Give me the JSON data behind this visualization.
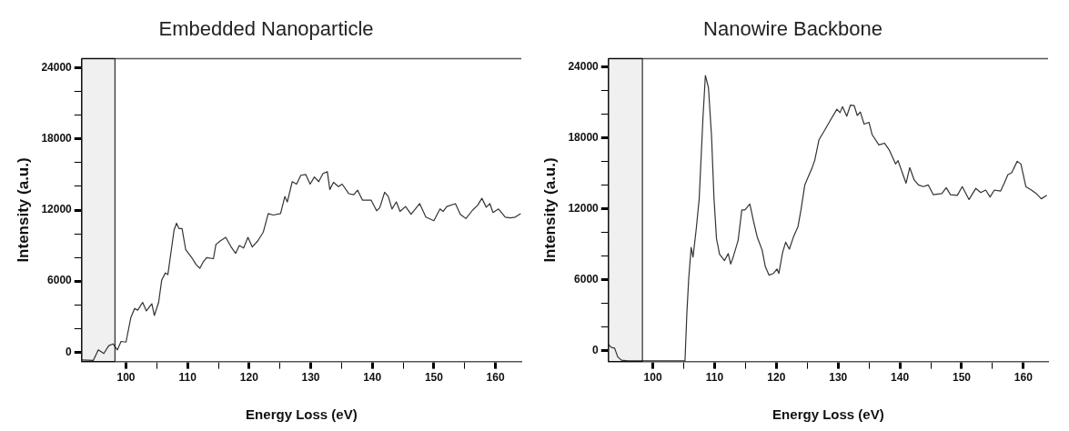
{
  "chart_data": [
    {
      "type": "line",
      "title": "Embedded Nanoparticle",
      "xlabel": "Energy Loss (eV)",
      "ylabel": "Intensity (a.u.)",
      "xlim": [
        92.8,
        164.2
      ],
      "ylim": [
        -800,
        24800
      ],
      "xticks": [
        100,
        {
          "value": 105,
          "label": null
        },
        110,
        {
          "value": 115,
          "label": null
        },
        120,
        {
          "value": 125,
          "label": null
        },
        130,
        {
          "value": 135,
          "label": null
        },
        140,
        {
          "value": 145,
          "label": null
        },
        150,
        {
          "value": 155,
          "label": null
        },
        160
      ],
      "yticks": [
        0,
        {
          "value": 2000,
          "label": null
        },
        {
          "value": 4000,
          "label": null
        },
        6000,
        {
          "value": 8000,
          "label": null
        },
        {
          "value": 10000,
          "label": null
        },
        12000,
        {
          "value": 14000,
          "label": null
        },
        {
          "value": 16000,
          "label": null
        },
        18000,
        {
          "value": 20000,
          "label": null
        },
        {
          "value": 22000,
          "label": null
        },
        24000
      ],
      "grid": false,
      "legend": false,
      "marker": "none",
      "line_style": "solid",
      "bands": [
        {
          "axis": "x",
          "from": 92.8,
          "to": 98.2,
          "color": "#000000"
        }
      ],
      "series": [
        {
          "color": "#333333",
          "x": [
            92.8,
            94.7,
            95.5,
            96.4,
            97.2,
            97.9,
            98.6,
            99.2,
            100,
            100.8,
            101.4,
            101.9,
            102.7,
            103.3,
            104.2,
            104.6,
            105.3,
            105.8,
            106.4,
            106.8,
            107.2,
            107.8,
            108.2,
            108.6,
            109.1,
            109.7,
            110.6,
            111.4,
            112,
            112.5,
            113.1,
            114.2,
            114.6,
            115.3,
            116.2,
            117,
            117.8,
            118.4,
            119.1,
            119.8,
            120.5,
            121.4,
            122.3,
            123.1,
            123.9,
            125.1,
            125.8,
            126.2,
            127,
            127.7,
            128.4,
            129.2,
            129.9,
            130.6,
            131.3,
            132,
            132.7,
            133.1,
            133.7,
            134.5,
            135.1,
            136.2,
            137,
            137.6,
            138.4,
            139.8,
            140.7,
            141.2,
            142,
            142.6,
            143.2,
            143.9,
            144.5,
            145.4,
            146.3,
            147.7,
            148.7,
            150,
            151,
            151.5,
            152.1,
            153.5,
            154.3,
            155.2,
            156.3,
            157.1,
            157.8,
            158.5,
            159.1,
            159.6,
            160.5,
            161.6,
            162.4,
            163.2,
            164.1
          ],
          "values": [
            -660,
            -700,
            180,
            -120,
            540,
            690,
            180,
            900,
            840,
            2940,
            3690,
            3540,
            4200,
            3480,
            4080,
            3090,
            4200,
            6090,
            6690,
            6540,
            8040,
            10290,
            10890,
            10440,
            10440,
            8640,
            8040,
            7380,
            7080,
            7590,
            7980,
            7890,
            9090,
            9390,
            9690,
            8940,
            8340,
            9000,
            8790,
            9690,
            8880,
            9390,
            10140,
            11700,
            11580,
            11700,
            13140,
            12690,
            14400,
            14190,
            14940,
            15000,
            14190,
            14790,
            14400,
            15090,
            15240,
            13740,
            14340,
            13980,
            14190,
            13380,
            13290,
            13680,
            12840,
            12840,
            11940,
            12180,
            13500,
            13140,
            12090,
            12690,
            11880,
            12300,
            11640,
            12540,
            11400,
            11100,
            12090,
            11880,
            12300,
            12540,
            11640,
            11280,
            12000,
            12390,
            12990,
            12240,
            12540,
            11790,
            12090,
            11400,
            11340,
            11400,
            11700
          ]
        }
      ]
    },
    {
      "type": "line",
      "title": "Nanowire Backbone",
      "xlabel": "Energy Loss (eV)",
      "ylabel": "Intensity (a.u.)",
      "xlim": [
        92.8,
        164
      ],
      "ylim": [
        -900,
        24700
      ],
      "xticks": [
        100,
        {
          "value": 105,
          "label": null
        },
        110,
        {
          "value": 115,
          "label": null
        },
        120,
        {
          "value": 125,
          "label": null
        },
        130,
        {
          "value": 135,
          "label": null
        },
        140,
        {
          "value": 145,
          "label": null
        },
        150,
        {
          "value": 155,
          "label": null
        },
        160
      ],
      "yticks": [
        0,
        {
          "value": 2000,
          "label": null
        },
        {
          "value": 4000,
          "label": null
        },
        6000,
        {
          "value": 8000,
          "label": null
        },
        {
          "value": 10000,
          "label": null
        },
        12000,
        {
          "value": 14000,
          "label": null
        },
        {
          "value": 16000,
          "label": null
        },
        18000,
        {
          "value": 20000,
          "label": null
        },
        {
          "value": 22000,
          "label": null
        },
        24000
      ],
      "grid": false,
      "legend": false,
      "marker": "none",
      "line_style": "solid",
      "bands": [
        {
          "axis": "x",
          "from": 92.8,
          "to": 98.3,
          "color": "#000000"
        }
      ],
      "series": [
        {
          "color": "#333333",
          "x": [
            92.8,
            93.3,
            93.8,
            94.3,
            94.9,
            96,
            98.2,
            99.8,
            105.2,
            105.5,
            105.8,
            106.2,
            106.5,
            107,
            107.5,
            108.1,
            108.5,
            109,
            109.5,
            109.9,
            110.3,
            110.8,
            111.6,
            112.2,
            112.6,
            113,
            113.8,
            114.4,
            114.9,
            115.7,
            116.3,
            116.9,
            117.7,
            118.2,
            118.8,
            119.5,
            120.1,
            120.4,
            121,
            121.5,
            122.1,
            122.8,
            123.5,
            124,
            124.6,
            125.2,
            125.7,
            126.2,
            126.9,
            127.9,
            128.7,
            129.8,
            130.3,
            130.7,
            131.4,
            132,
            132.6,
            133.1,
            133.6,
            134.2,
            135,
            135.5,
            136.6,
            137.5,
            138.3,
            139.3,
            139.7,
            140.5,
            141,
            141.6,
            142.3,
            143,
            143.8,
            144.6,
            145.4,
            146.8,
            147.5,
            148.2,
            149.3,
            150.1,
            151.2,
            152.3,
            153.1,
            153.9,
            154.6,
            155.3,
            156.3,
            156.9,
            157.5,
            158.1,
            159,
            159.6,
            160.4,
            161.3,
            162.1,
            162.9,
            163.8
          ],
          "values": [
            530,
            290,
            230,
            -500,
            -790,
            -850,
            -850,
            -850,
            -850,
            3170,
            6100,
            8740,
            7920,
            10210,
            12850,
            19600,
            23270,
            22240,
            18130,
            12850,
            9480,
            8160,
            7630,
            8220,
            7340,
            7920,
            9330,
            11910,
            11910,
            12410,
            10940,
            9620,
            8510,
            7130,
            6400,
            6540,
            6920,
            6540,
            8300,
            9180,
            8600,
            9680,
            10500,
            11970,
            14020,
            14760,
            15350,
            16080,
            17840,
            18720,
            19450,
            20420,
            20130,
            20630,
            19830,
            20770,
            20720,
            19890,
            20190,
            19160,
            19310,
            18280,
            17400,
            17550,
            16960,
            15790,
            16080,
            14900,
            14170,
            15490,
            14460,
            14020,
            13880,
            14020,
            13200,
            13290,
            13790,
            13200,
            13140,
            13880,
            12790,
            13730,
            13380,
            13590,
            13000,
            13590,
            13500,
            14170,
            14900,
            15050,
            16020,
            15790,
            13880,
            13590,
            13290,
            12850,
            13140
          ]
        }
      ]
    }
  ]
}
